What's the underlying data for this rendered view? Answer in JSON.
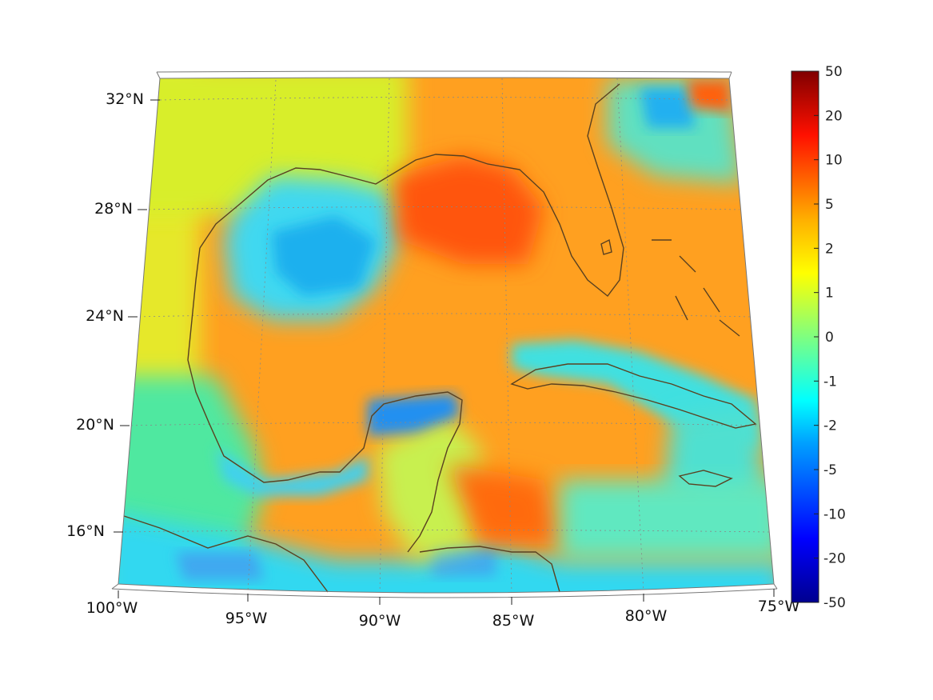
{
  "map": {
    "projection": "lambert-conformal-conic",
    "extent": {
      "lon_min": -100,
      "lon_max": -75,
      "lat_min": 14,
      "lat_max": 33
    },
    "grid": true,
    "coastline_color": "#5a4120",
    "lat_ticks": [
      {
        "lat": 32,
        "label": "32°N"
      },
      {
        "lat": 28,
        "label": "28°N"
      },
      {
        "lat": 24,
        "label": "24°N"
      },
      {
        "lat": 20,
        "label": "20°N"
      },
      {
        "lat": 16,
        "label": "16°N"
      }
    ],
    "lon_ticks": [
      {
        "lon": -100,
        "label": "100°W"
      },
      {
        "lon": -95,
        "label": "95°W"
      },
      {
        "lon": -90,
        "label": "90°W"
      },
      {
        "lon": -85,
        "label": "85°W"
      },
      {
        "lon": -80,
        "label": "80°W"
      },
      {
        "lon": -75,
        "label": "75°W"
      }
    ],
    "regions": [
      {
        "name": "north-gulf-cold-pool",
        "level": -2
      },
      {
        "name": "campeche-bank-cold",
        "level": -2
      },
      {
        "name": "eastern-gulf-warm",
        "level": 6
      },
      {
        "name": "caribbean-warm",
        "level": 4
      },
      {
        "name": "pacific-cold",
        "level": -2
      }
    ]
  },
  "colorbar": {
    "colormap": "jet",
    "ticks": [
      "50",
      "20",
      "10",
      "5",
      "2",
      "1",
      "0",
      "-1",
      "-2",
      "-5",
      "-10",
      "-20",
      "-50"
    ]
  }
}
